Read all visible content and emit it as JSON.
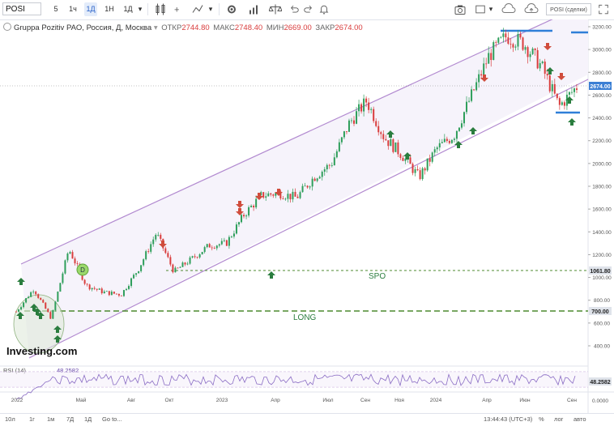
{
  "toolbar": {
    "symbol": "POSI",
    "intervals": [
      "5",
      "1ч",
      "1Д",
      "1Н",
      "1Д"
    ],
    "active_interval": 2,
    "trade_button": "POSI (сделки)"
  },
  "legend": {
    "title": "Gruppa Pozitiv PAO, Россия, Д, Москва",
    "open_label": "ОТКР",
    "open": "2744.80",
    "high_label": "МАКС",
    "high": "2748.40",
    "low_label": "МИН",
    "low": "2669.00",
    "close_label": "ЗАКР",
    "close": "2674.00"
  },
  "price_axis": {
    "ticks": [
      "3200.00",
      "3000.00",
      "2800.00",
      "2600.00",
      "2400.00",
      "2200.00",
      "2000.00",
      "1800.00",
      "1600.00",
      "1400.00",
      "1200.00",
      "1000.00",
      "800.00",
      "600.00",
      "400.00"
    ],
    "last_price": "2674.00",
    "spo_level": "1061.80",
    "long_level": "700.00"
  },
  "time_axis": [
    "2022",
    "Май",
    "Авг",
    "Окт",
    "2023",
    "Апр",
    "Июл",
    "Сен",
    "Ноя",
    "2024",
    "Апр",
    "Июн",
    "Сен"
  ],
  "annotations": {
    "spo": "SPO",
    "long": "LONG",
    "d_marker": "D",
    "watermark": "Investing.com"
  },
  "rsi": {
    "label": "RSI (14)",
    "value": "48.2582",
    "axis_value": "48.2582",
    "ticks": [
      "",
      "0.0000"
    ]
  },
  "bottom": {
    "ranges": [
      "10л",
      "1г",
      "1м",
      "7Д",
      "1Д",
      "Go to..."
    ],
    "time": "13:44:43 (UTC+3)",
    "percent": "%",
    "log": "лог",
    "auto": "авто"
  },
  "colors": {
    "up_candle": "#2e9e5b",
    "down_candle": "#d93d3d",
    "channel": "#b28ad0",
    "up_arrow": "#2a7d3e",
    "down_arrow": "#d04c3c",
    "blue_level": "#2f7fd8",
    "green_dash": "#4d8a2f"
  },
  "chart_data": {
    "type": "candlestick",
    "title": "Gruppa Pozitiv PAO, Россия, Д, Москва",
    "ylim": [
      300,
      3270
    ],
    "yticks": [
      3200,
      3000,
      2800,
      2600,
      2400,
      2200,
      2000,
      1800,
      1600,
      1400,
      1200,
      1000,
      800,
      600,
      400
    ],
    "series": [
      {
        "name": "POSI",
        "points": [
          [
            "2022-01",
            700
          ],
          [
            "2022-02",
            900
          ],
          [
            "2022-03",
            640
          ],
          [
            "2022-04",
            1250
          ],
          [
            "2022-05",
            930
          ],
          [
            "2022-06",
            870
          ],
          [
            "2022-07",
            850
          ],
          [
            "2022-08",
            1080
          ],
          [
            "2022-09",
            1390
          ],
          [
            "2022-10",
            1050
          ],
          [
            "2022-11",
            1160
          ],
          [
            "2022-12",
            1280
          ],
          [
            "2023-01",
            1300
          ],
          [
            "2023-02",
            1550
          ],
          [
            "2023-03",
            1720
          ],
          [
            "2023-04",
            1740
          ],
          [
            "2023-05",
            1700
          ],
          [
            "2023-06",
            1880
          ],
          [
            "2023-07",
            2000
          ],
          [
            "2023-08",
            2350
          ],
          [
            "2023-09",
            2550
          ],
          [
            "2023-10",
            2230
          ],
          [
            "2023-11",
            2080
          ],
          [
            "2023-12",
            1880
          ],
          [
            "2024-01",
            2130
          ],
          [
            "2024-02",
            2250
          ],
          [
            "2024-03",
            2600
          ],
          [
            "2024-04",
            2950
          ],
          [
            "2024-05",
            3120
          ],
          [
            "2024-06",
            3050
          ],
          [
            "2024-07",
            2850
          ],
          [
            "2024-08",
            2500
          ],
          [
            "2024-09",
            2674
          ]
        ]
      }
    ],
    "levels": [
      {
        "label": "SPO",
        "value": 1061.8
      },
      {
        "label": "LONG",
        "value": 700
      }
    ],
    "rsi": {
      "period": 14,
      "value": 48.2582
    }
  }
}
